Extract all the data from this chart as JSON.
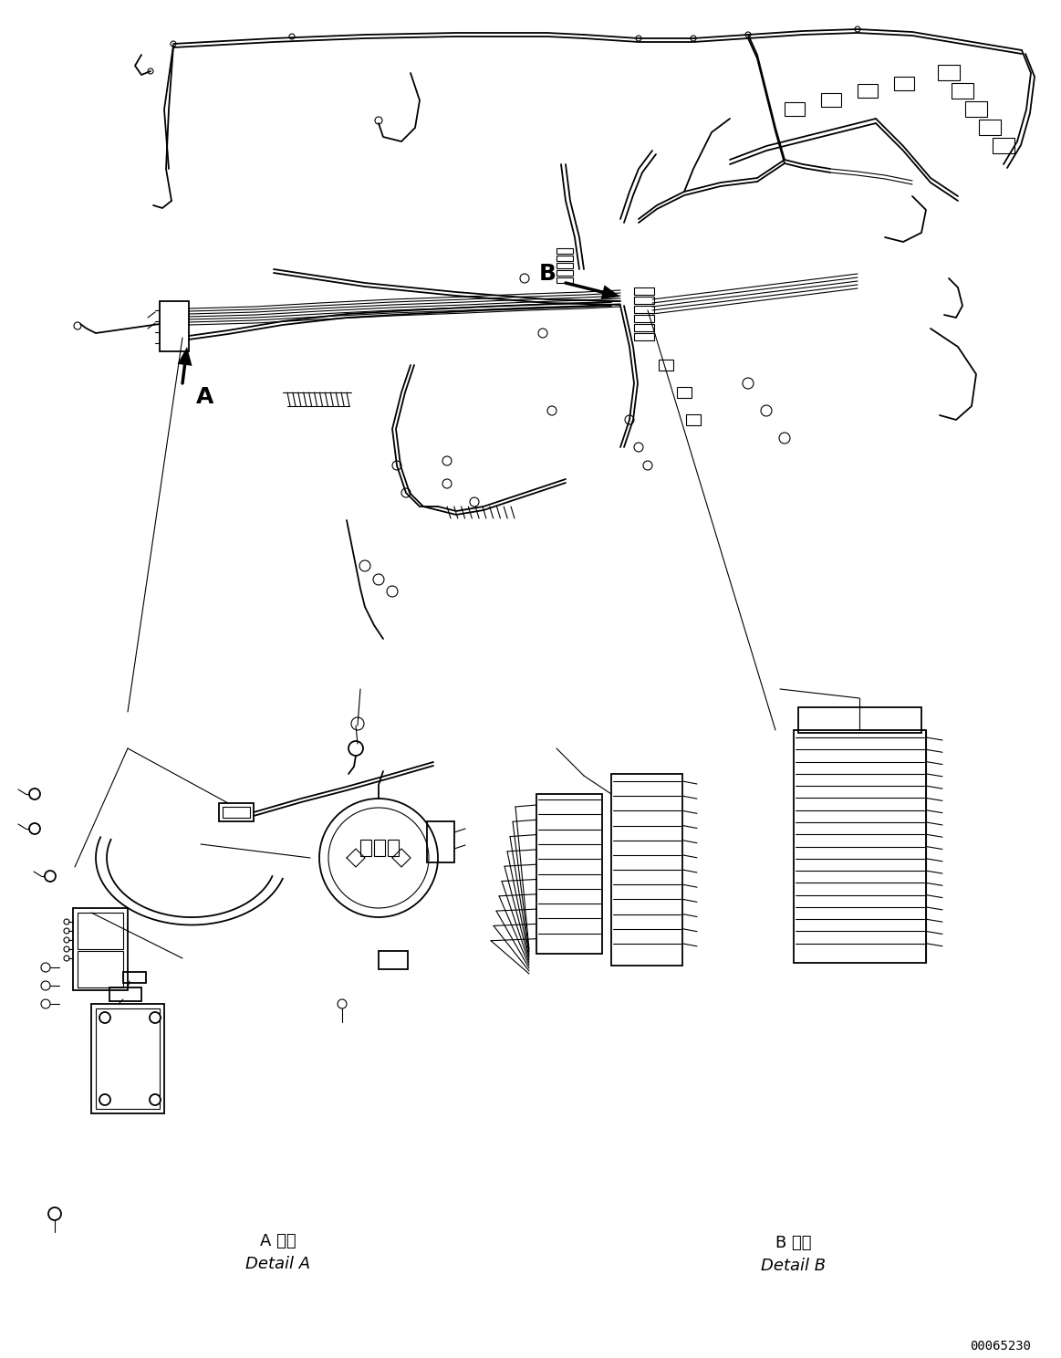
{
  "bg_color": "#ffffff",
  "line_color": "#000000",
  "fig_width": 11.63,
  "fig_height": 14.88,
  "dpi": 100,
  "label_A": "A",
  "label_B": "B",
  "detail_A_jp": "A 詳細",
  "detail_A_en": "Detail A",
  "detail_B_jp": "B 詳細",
  "detail_B_en": "Detail B",
  "part_number": "00065230",
  "lw_main": 1.3,
  "lw_thin": 0.8,
  "lw_thick": 2.0,
  "lw_arrow": 2.5
}
